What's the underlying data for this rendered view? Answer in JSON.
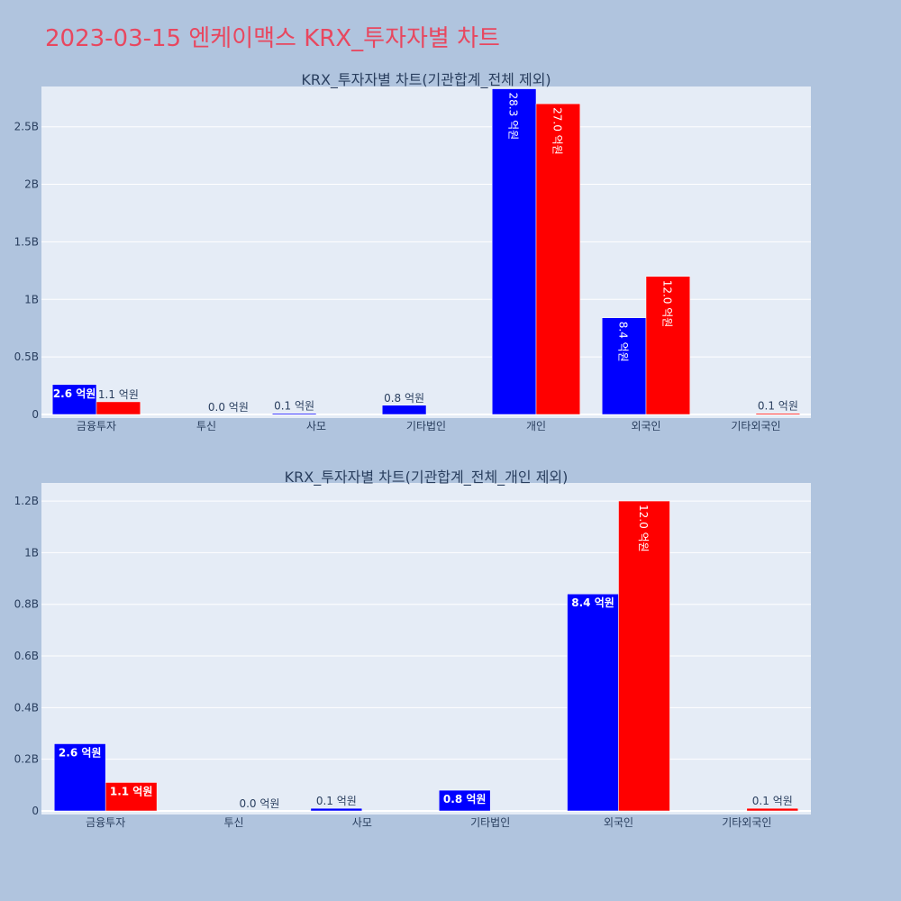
{
  "title": "2023-03-15 엔케이맥스 KRX_투자자별 차트",
  "colors": {
    "background": "#b0c4de",
    "plot_bg": "#e5ecf6",
    "grid": "#ffffff",
    "series_a": "#0000ff",
    "series_b": "#ff0000",
    "title": "#e8475f",
    "text": "#2a3f5f"
  },
  "chart_data": [
    {
      "type": "bar",
      "title": "KRX_투자자별 차트(기관합계_전체 제외)",
      "categories": [
        "금융투자",
        "투신",
        "사모",
        "기타법인",
        "개인",
        "외국인",
        "기타외국인"
      ],
      "ylim": [
        0,
        2.85
      ],
      "yticks": [
        0,
        0.5,
        1,
        1.5,
        2,
        2.5
      ],
      "ytick_labels": [
        "0",
        "0.5B",
        "1B",
        "1.5B",
        "2B",
        "2.5B"
      ],
      "series": [
        {
          "values": [
            0.26,
            0,
            0.01,
            0.08,
            2.83,
            0.84,
            0
          ],
          "labels": [
            "2.6 억원",
            "",
            "0.1 억원",
            "0.8 억원",
            "28.3 억원",
            "8.4 억원",
            ""
          ],
          "label_pos": [
            "inside-bold",
            "",
            "outside",
            "outside",
            "inside-vertical",
            "inside-vertical",
            ""
          ]
        },
        {
          "values": [
            0.11,
            0.0,
            0,
            0,
            2.7,
            1.2,
            0.01
          ],
          "labels": [
            "1.1 억원",
            "0.0 억원",
            "",
            "",
            "27.0 억원",
            "12.0 억원",
            "0.1 억원"
          ],
          "label_pos": [
            "outside",
            "outside",
            "",
            "",
            "inside-vertical",
            "inside-vertical",
            "outside"
          ]
        }
      ]
    },
    {
      "type": "bar",
      "title": "KRX_투자자별 차트(기관합계_전체_개인 제외)",
      "categories": [
        "금융투자",
        "투신",
        "사모",
        "기타법인",
        "외국인",
        "기타외국인"
      ],
      "ylim": [
        0,
        1.27
      ],
      "yticks": [
        0,
        0.2,
        0.4,
        0.6,
        0.8,
        1,
        1.2
      ],
      "ytick_labels": [
        "0",
        "0.2B",
        "0.4B",
        "0.6B",
        "0.8B",
        "1B",
        "1.2B"
      ],
      "series": [
        {
          "values": [
            0.26,
            0,
            0.01,
            0.08,
            0.84,
            0
          ],
          "labels": [
            "2.6 억원",
            "",
            "0.1 억원",
            "0.8 억원",
            "8.4 억원",
            ""
          ],
          "label_pos": [
            "inside-bold",
            "",
            "outside",
            "inside-bold",
            "inside-bold",
            ""
          ]
        },
        {
          "values": [
            0.11,
            0.0,
            0,
            0,
            1.2,
            0.01
          ],
          "labels": [
            "1.1 억원",
            "0.0 억원",
            "",
            "",
            "12.0 억원",
            "0.1 억원"
          ],
          "label_pos": [
            "inside-bold",
            "outside",
            "",
            "",
            "inside-vertical",
            "outside"
          ]
        }
      ]
    }
  ]
}
